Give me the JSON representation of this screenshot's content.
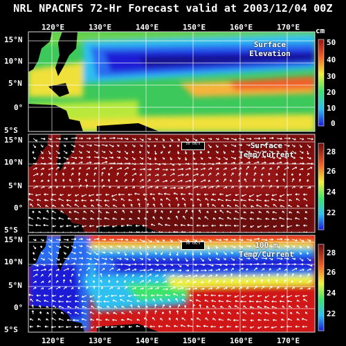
{
  "title": "NRL NPACNFS 72-Hr Forecast valid at 2003/12/04 00Z",
  "panels": [
    {
      "caption_line1": "Surface",
      "caption_line2": "Elevation",
      "ylabels": [
        "15°N",
        "10°N",
        "5°N",
        "0°",
        "5°S"
      ],
      "units": "cm",
      "colorbar_ticks": [
        "50",
        "40",
        "30",
        "20",
        "10",
        "0"
      ],
      "show_scale": false
    },
    {
      "caption_line1": "Surface",
      "caption_line2": "Temp/Current",
      "ylabels": [
        "15°N",
        "10°N",
        "5°N",
        "0°",
        "5°S"
      ],
      "colorbar_ticks": [
        "28",
        "26",
        "24",
        "22"
      ],
      "scale_label": "50 cm/s",
      "show_scale": true
    },
    {
      "caption_line1": "100 m",
      "caption_line2": "Temp/Current",
      "ylabels": [
        "15°N",
        "10°N",
        "5°N",
        "0°",
        "5°S"
      ],
      "colorbar_ticks": [
        "28",
        "26",
        "24",
        "22"
      ],
      "scale_label": "50 cm/s",
      "show_scale": true
    }
  ],
  "xlabels": [
    "120°E",
    "130°E",
    "140°E",
    "150°E",
    "160°E",
    "170°E"
  ],
  "palette": [
    "#1b1bd6",
    "#2a6cf0",
    "#2ec0f0",
    "#30e0c0",
    "#3ce36a",
    "#b8e83a",
    "#f0f03a",
    "#f6b43a",
    "#f0602a",
    "#d01818",
    "#9a1010",
    "#6b0a0a"
  ]
}
